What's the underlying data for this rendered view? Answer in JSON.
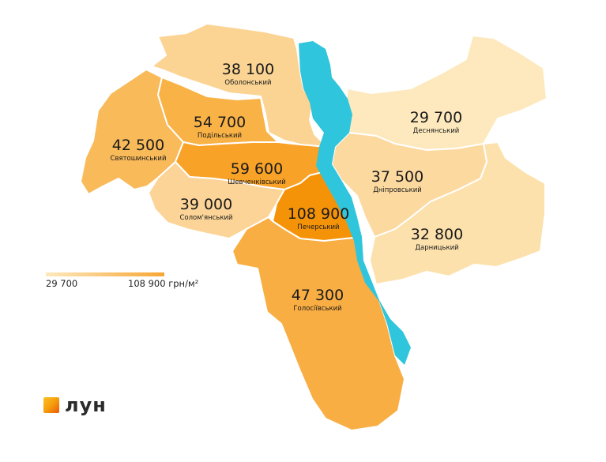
{
  "legend": {
    "min_label": "29 700",
    "max_label": "108 900 грн/м²"
  },
  "brand": {
    "logo_text": "лун"
  },
  "colors": {
    "river": "#2fc5dc",
    "low": "#fde9bd",
    "high": "#f7a635"
  },
  "districts": [
    {
      "id": "obolonskyi",
      "name": "Оболонський",
      "price": "38 100",
      "color": "#fbd494"
    },
    {
      "id": "desnianskyi",
      "name": "Деснянський",
      "price": "29 700",
      "color": "#fde9bd"
    },
    {
      "id": "podilskyi",
      "name": "Подільський",
      "price": "54 700",
      "color": "#f9b246"
    },
    {
      "id": "sviatoshynskyi",
      "name": "Святошинський",
      "price": "42 500",
      "color": "#f9ba5a"
    },
    {
      "id": "shevchenkivskyi",
      "name": "Шевченківський",
      "price": "59 600",
      "color": "#f8a228"
    },
    {
      "id": "dniprovskyi",
      "name": "Дніпровський",
      "price": "37 500",
      "color": "#fcd99f"
    },
    {
      "id": "solomianskyi",
      "name": "Солом'янський",
      "price": "39 000",
      "color": "#fcd497"
    },
    {
      "id": "pecherskyi",
      "name": "Печерський",
      "price": "108 900",
      "color": "#f59308"
    },
    {
      "id": "darnytskyi",
      "name": "Дарницький",
      "price": "32 800",
      "color": "#fde1ad"
    },
    {
      "id": "holosiivskyi",
      "name": "Голосіївський",
      "price": "47 300",
      "color": "#f9ae43"
    }
  ]
}
